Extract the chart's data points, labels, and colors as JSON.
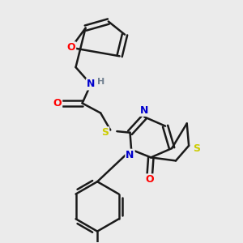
{
  "background_color": "#ebebeb",
  "bond_color": "#1a1a1a",
  "atom_colors": {
    "O": "#ff0000",
    "N": "#0000cd",
    "S": "#cccc00",
    "H": "#708090",
    "C": "#1a1a1a"
  },
  "figsize": [
    3.0,
    3.0
  ],
  "dpi": 100
}
